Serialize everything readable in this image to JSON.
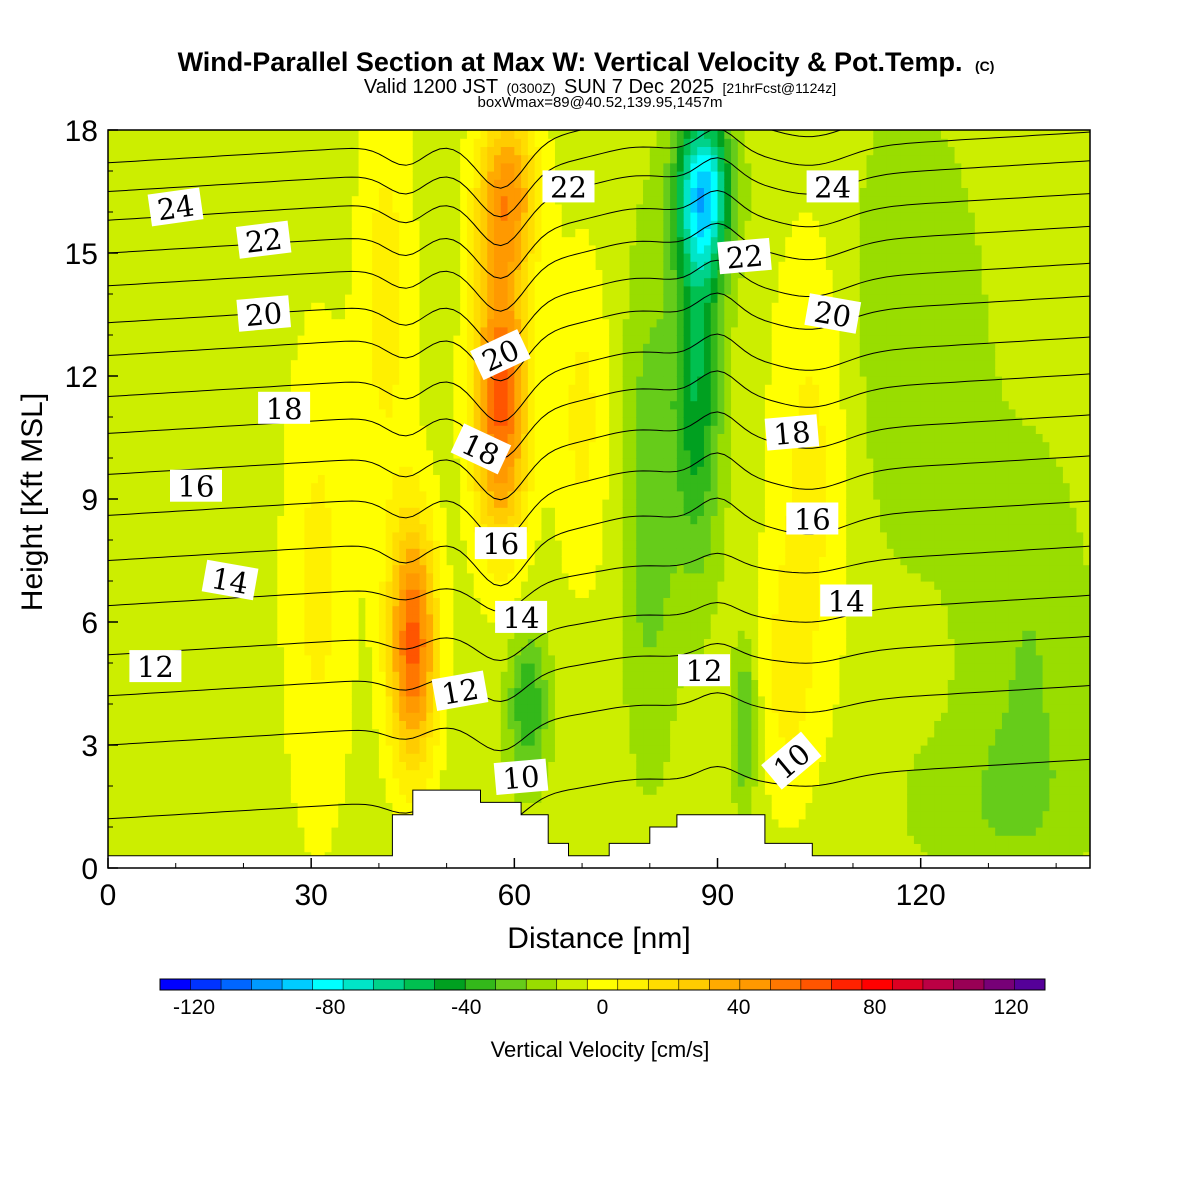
{
  "title": {
    "main": "Wind-Parallel Section at Max W: Vertical Velocity & Pot.Temp.",
    "main_suffix": "(C)",
    "valid_prefix": "Valid 1200 JST",
    "valid_zulu": "(0300Z)",
    "valid_date": "SUN 7 Dec 2025",
    "forecast": "[21hrFcst@1124z]",
    "box_info": "boxWmax=89@40.52,139.95,1457m"
  },
  "chart_data": {
    "type": "heatmap",
    "xlabel": "Distance [nm]",
    "ylabel": "Height [Kft MSL]",
    "xlim": [
      0,
      145
    ],
    "ylim": [
      0,
      18
    ],
    "x_ticks": [
      0,
      30,
      60,
      90,
      120
    ],
    "y_ticks": [
      0,
      3,
      6,
      9,
      12,
      15,
      18
    ],
    "colorbar": {
      "title": "Vertical Velocity [cm/s]",
      "min": -130,
      "max": 130,
      "step": 10,
      "tick_values": [
        -120,
        -80,
        -40,
        0,
        40,
        80,
        120
      ],
      "colors": [
        "#0000ff",
        "#0033ff",
        "#0066ff",
        "#0099ff",
        "#00ccff",
        "#00ffff",
        "#00e5c8",
        "#00d28a",
        "#00c050",
        "#00a020",
        "#33b81a",
        "#66cc1a",
        "#99dd00",
        "#ccee00",
        "#ffff00",
        "#fff000",
        "#ffdd00",
        "#ffcc00",
        "#ffaa00",
        "#ff9900",
        "#ff7700",
        "#ff5500",
        "#ff2200",
        "#ff0000",
        "#dd0022",
        "#bb0044",
        "#990055",
        "#770077",
        "#550099"
      ]
    },
    "velocity_centers": [
      {
        "x": 45,
        "y": 5.5,
        "value": 78,
        "sx": 3.5,
        "sy": 3.0
      },
      {
        "x": 58,
        "y": 11.5,
        "value": 80,
        "sx": 4.0,
        "sy": 3.5
      },
      {
        "x": 59,
        "y": 16.5,
        "value": 55,
        "sx": 4.5,
        "sy": 2.0
      },
      {
        "x": 31,
        "y": 7.0,
        "value": 18,
        "sx": 5.0,
        "sy": 6.0
      },
      {
        "x": 41,
        "y": 14.0,
        "value": 20,
        "sx": 4.0,
        "sy": 5.0
      },
      {
        "x": 70,
        "y": 11.0,
        "value": 18,
        "sx": 4.0,
        "sy": 4.0
      },
      {
        "x": 104,
        "y": 10.0,
        "value": 20,
        "sx": 6.0,
        "sy": 6.0
      },
      {
        "x": 100,
        "y": 4.5,
        "value": 15,
        "sx": 4.0,
        "sy": 3.0
      },
      {
        "x": 88,
        "y": 16.5,
        "value": -80,
        "sx": 4.0,
        "sy": 2.0
      },
      {
        "x": 87,
        "y": 12.0,
        "value": -45,
        "sx": 3.5,
        "sy": 4.5
      },
      {
        "x": 80,
        "y": 9.0,
        "value": -22,
        "sx": 4.0,
        "sy": 6.0
      },
      {
        "x": 62,
        "y": 4.0,
        "value": -35,
        "sx": 3.0,
        "sy": 1.8
      },
      {
        "x": 94,
        "y": 3.5,
        "value": -28,
        "sx": 1.8,
        "sy": 2.0
      },
      {
        "x": 118,
        "y": 13.0,
        "value": -12,
        "sx": 12.0,
        "sy": 6.0
      },
      {
        "x": 136,
        "y": 5.0,
        "value": -15,
        "sx": 9.0,
        "sy": 5.0
      },
      {
        "x": 130,
        "y": 1.5,
        "value": -10,
        "sx": 14.0,
        "sy": 2.0
      }
    ],
    "terrain": [
      [
        0,
        0.3
      ],
      [
        42,
        0.3
      ],
      [
        42,
        1.3
      ],
      [
        45,
        1.3
      ],
      [
        45,
        1.9
      ],
      [
        55,
        1.9
      ],
      [
        55,
        1.6
      ],
      [
        61,
        1.6
      ],
      [
        61,
        1.3
      ],
      [
        65,
        1.3
      ],
      [
        65,
        0.6
      ],
      [
        68,
        0.6
      ],
      [
        68,
        0.3
      ],
      [
        74,
        0.3
      ],
      [
        74,
        0.6
      ],
      [
        80,
        0.6
      ],
      [
        80,
        1.0
      ],
      [
        84,
        1.0
      ],
      [
        84,
        1.3
      ],
      [
        97,
        1.3
      ],
      [
        97,
        0.6
      ],
      [
        104,
        0.6
      ],
      [
        104,
        0.3
      ],
      [
        145,
        0.3
      ]
    ],
    "theta_baseline": [
      {
        "level": 10,
        "y": 1.9
      },
      {
        "level": 11,
        "y": 3.7
      },
      {
        "level": 12,
        "y": 4.9
      },
      {
        "level": 13,
        "y": 5.9
      },
      {
        "level": 14,
        "y": 7.1
      },
      {
        "level": 15,
        "y": 8.2
      },
      {
        "level": 16,
        "y": 9.3
      },
      {
        "level": 17,
        "y": 10.3
      },
      {
        "level": 18,
        "y": 11.3
      },
      {
        "level": 19,
        "y": 12.2
      },
      {
        "level": 20,
        "y": 13.2
      },
      {
        "level": 21,
        "y": 14.0
      },
      {
        "level": 22,
        "y": 14.9
      },
      {
        "level": 23,
        "y": 15.7
      },
      {
        "level": 24,
        "y": 16.5
      },
      {
        "level": 25,
        "y": 17.2
      },
      {
        "level": 26,
        "y": 17.9
      }
    ],
    "contour_labels": [
      {
        "text": "24",
        "x": 10,
        "y": 16.1,
        "rotate": -8
      },
      {
        "text": "22",
        "x": 23,
        "y": 15.3,
        "rotate": -7
      },
      {
        "text": "20",
        "x": 23,
        "y": 13.5,
        "rotate": -5
      },
      {
        "text": "18",
        "x": 26,
        "y": 11.2,
        "rotate": 0
      },
      {
        "text": "16",
        "x": 13,
        "y": 9.3,
        "rotate": 0
      },
      {
        "text": "14",
        "x": 18,
        "y": 7.0,
        "rotate": 10
      },
      {
        "text": "12",
        "x": 7,
        "y": 4.9,
        "rotate": 0
      },
      {
        "text": "22",
        "x": 68,
        "y": 16.6,
        "rotate": 0
      },
      {
        "text": "20",
        "x": 58,
        "y": 12.5,
        "rotate": -25
      },
      {
        "text": "18",
        "x": 55,
        "y": 10.2,
        "rotate": 25
      },
      {
        "text": "16",
        "x": 58,
        "y": 7.9,
        "rotate": 0
      },
      {
        "text": "14",
        "x": 61,
        "y": 6.1,
        "rotate": 0
      },
      {
        "text": "12",
        "x": 52,
        "y": 4.3,
        "rotate": -10
      },
      {
        "text": "10",
        "x": 61,
        "y": 2.2,
        "rotate": -5
      },
      {
        "text": "24",
        "x": 107,
        "y": 16.6,
        "rotate": 0
      },
      {
        "text": "22",
        "x": 94,
        "y": 14.9,
        "rotate": -5
      },
      {
        "text": "20",
        "x": 107,
        "y": 13.5,
        "rotate": 10
      },
      {
        "text": "18",
        "x": 101,
        "y": 10.6,
        "rotate": -5
      },
      {
        "text": "16",
        "x": 104,
        "y": 8.5,
        "rotate": 0
      },
      {
        "text": "14",
        "x": 109,
        "y": 6.5,
        "rotate": 0
      },
      {
        "text": "12",
        "x": 88,
        "y": 4.8,
        "rotate": 0
      },
      {
        "text": "10",
        "x": 101,
        "y": 2.6,
        "rotate": -40
      }
    ]
  }
}
